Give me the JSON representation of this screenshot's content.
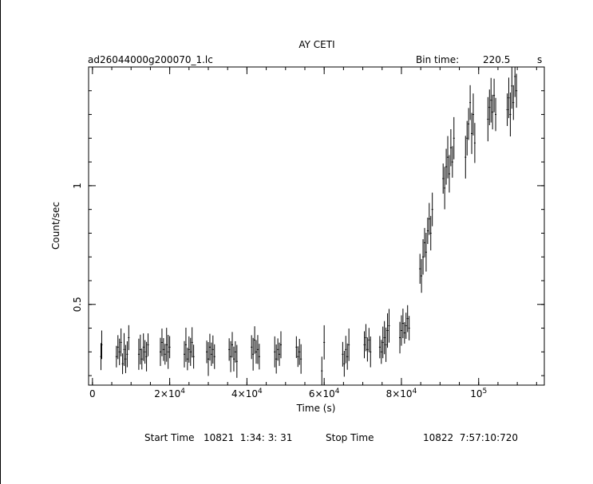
{
  "header": {
    "title": "AY CETI",
    "filename": "ad26044000g200070_1.lc",
    "bin_label": "Bin time:",
    "bin_value": "220.5",
    "bin_unit": "s"
  },
  "footer": {
    "start_label": "Start Time",
    "start_value": "10821  1:34: 3: 31",
    "stop_label": "Stop Time",
    "stop_value": "10822  7:57:10:720"
  },
  "chart_data": {
    "type": "scatter",
    "xlabel": "Time (s)",
    "ylabel": "Count/sec",
    "xlim": [
      -1000,
      117000
    ],
    "ylim": [
      0.16,
      1.5
    ],
    "x_ticks": [
      {
        "value": 0,
        "label": "0"
      },
      {
        "value": 20000,
        "label": "2×10^4"
      },
      {
        "value": 40000,
        "label": "4×10^4"
      },
      {
        "value": 60000,
        "label": "6×10^4"
      },
      {
        "value": 80000,
        "label": "8×10^4"
      },
      {
        "value": 100000,
        "label": "10^5"
      }
    ],
    "y_ticks": [
      {
        "value": 0.5,
        "label": "0.5"
      },
      {
        "value": 1,
        "label": "1"
      }
    ],
    "x_minor_step": 5000,
    "y_minor_step": 0.1,
    "error_bars": true,
    "points": [
      [
        2200,
        0.28
      ],
      [
        2400,
        0.33
      ],
      [
        6200,
        0.28
      ],
      [
        6600,
        0.32
      ],
      [
        7000,
        0.3
      ],
      [
        7400,
        0.34
      ],
      [
        7800,
        0.25
      ],
      [
        8200,
        0.31
      ],
      [
        8600,
        0.27
      ],
      [
        9000,
        0.29
      ],
      [
        9400,
        0.36
      ],
      [
        12000,
        0.29
      ],
      [
        12400,
        0.31
      ],
      [
        12800,
        0.27
      ],
      [
        13200,
        0.32
      ],
      [
        13600,
        0.3
      ],
      [
        14000,
        0.28
      ],
      [
        14400,
        0.33
      ],
      [
        17600,
        0.3
      ],
      [
        18000,
        0.34
      ],
      [
        18400,
        0.31
      ],
      [
        18800,
        0.29
      ],
      [
        19200,
        0.33
      ],
      [
        19600,
        0.3
      ],
      [
        20000,
        0.32
      ],
      [
        23800,
        0.29
      ],
      [
        24200,
        0.33
      ],
      [
        24600,
        0.27
      ],
      [
        25000,
        0.31
      ],
      [
        25400,
        0.3
      ],
      [
        25800,
        0.34
      ],
      [
        26200,
        0.28
      ],
      [
        29600,
        0.3
      ],
      [
        30000,
        0.27
      ],
      [
        30400,
        0.32
      ],
      [
        30800,
        0.29
      ],
      [
        31200,
        0.31
      ],
      [
        31600,
        0.28
      ],
      [
        35400,
        0.31
      ],
      [
        35800,
        0.28
      ],
      [
        36200,
        0.33
      ],
      [
        36600,
        0.27
      ],
      [
        37000,
        0.3
      ],
      [
        37400,
        0.26
      ],
      [
        41200,
        0.32
      ],
      [
        41600,
        0.29
      ],
      [
        42000,
        0.35
      ],
      [
        42400,
        0.3
      ],
      [
        42800,
        0.31
      ],
      [
        43200,
        0.28
      ],
      [
        47200,
        0.3
      ],
      [
        47600,
        0.27
      ],
      [
        48000,
        0.31
      ],
      [
        48400,
        0.29
      ],
      [
        48800,
        0.33
      ],
      [
        52800,
        0.32
      ],
      [
        53200,
        0.28
      ],
      [
        53600,
        0.3
      ],
      [
        54000,
        0.27
      ],
      [
        59400,
        0.22
      ],
      [
        60000,
        0.34
      ],
      [
        64800,
        0.29
      ],
      [
        65200,
        0.25
      ],
      [
        65600,
        0.31
      ],
      [
        66000,
        0.28
      ],
      [
        66400,
        0.33
      ],
      [
        70400,
        0.33
      ],
      [
        70800,
        0.36
      ],
      [
        71200,
        0.31
      ],
      [
        71600,
        0.35
      ],
      [
        72000,
        0.3
      ],
      [
        74400,
        0.32
      ],
      [
        74800,
        0.3
      ],
      [
        75200,
        0.34
      ],
      [
        75600,
        0.36
      ],
      [
        76000,
        0.33
      ],
      [
        76400,
        0.39
      ],
      [
        76800,
        0.41
      ],
      [
        79600,
        0.36
      ],
      [
        80000,
        0.39
      ],
      [
        80400,
        0.42
      ],
      [
        80800,
        0.38
      ],
      [
        81200,
        0.41
      ],
      [
        81600,
        0.44
      ],
      [
        82000,
        0.4
      ],
      [
        84800,
        0.65
      ],
      [
        85200,
        0.62
      ],
      [
        85600,
        0.7
      ],
      [
        86000,
        0.76
      ],
      [
        86400,
        0.72
      ],
      [
        86800,
        0.81
      ],
      [
        87200,
        0.86
      ],
      [
        87600,
        0.8
      ],
      [
        88000,
        0.9
      ],
      [
        90800,
        1.03
      ],
      [
        91200,
        0.99
      ],
      [
        91600,
        1.08
      ],
      [
        92000,
        1.12
      ],
      [
        92400,
        1.05
      ],
      [
        92800,
        1.16
      ],
      [
        93200,
        1.1
      ],
      [
        93600,
        1.2
      ],
      [
        96600,
        1.12
      ],
      [
        97000,
        1.2
      ],
      [
        97400,
        1.26
      ],
      [
        97800,
        1.35
      ],
      [
        98200,
        1.22
      ],
      [
        98600,
        1.3
      ],
      [
        99000,
        1.18
      ],
      [
        102400,
        1.28
      ],
      [
        102800,
        1.33
      ],
      [
        103200,
        1.36
      ],
      [
        103600,
        1.31
      ],
      [
        104000,
        1.38
      ],
      [
        104400,
        1.3
      ],
      [
        107400,
        1.32
      ],
      [
        107800,
        1.37
      ],
      [
        108200,
        1.3
      ],
      [
        108600,
        1.42
      ],
      [
        109000,
        1.35
      ],
      [
        109400,
        1.46
      ],
      [
        109800,
        1.4
      ]
    ]
  }
}
